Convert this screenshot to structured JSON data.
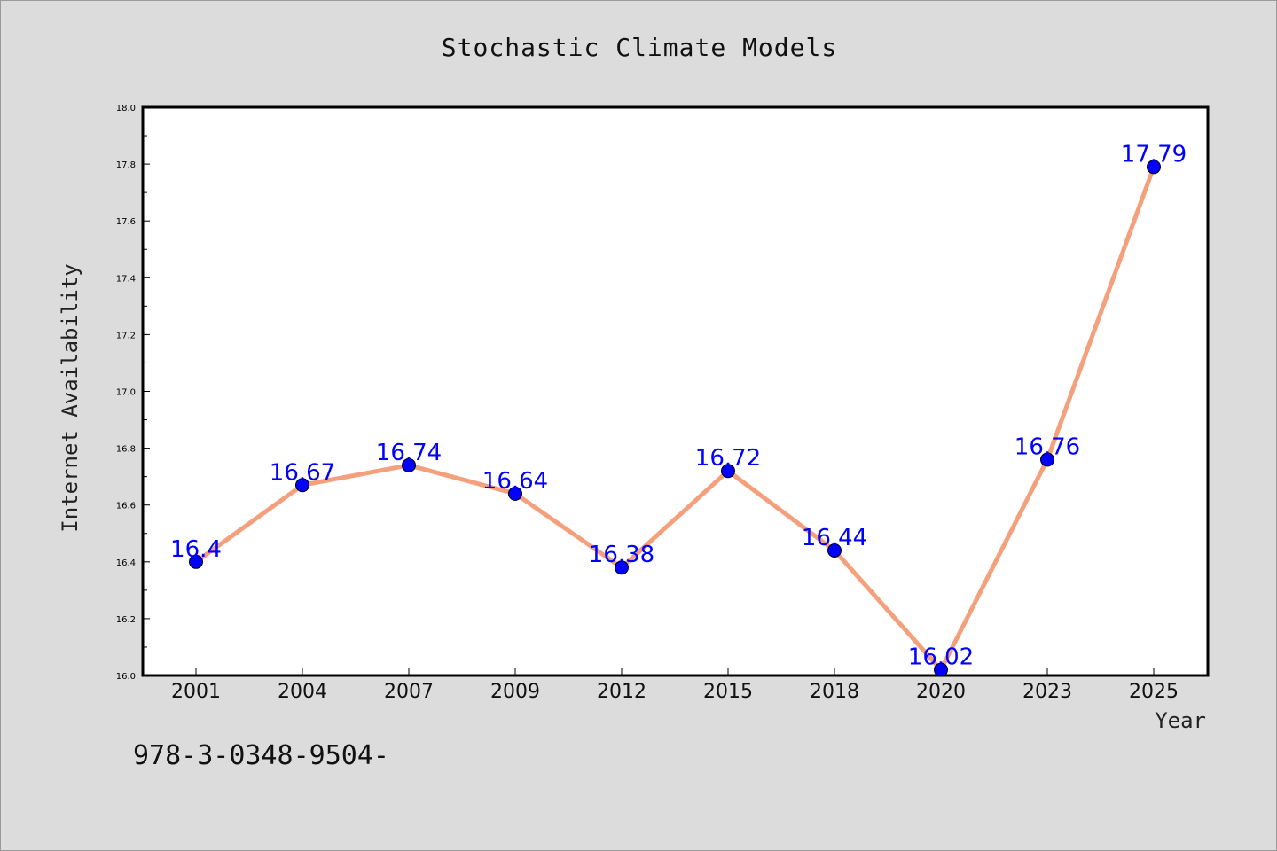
{
  "chart_data": {
    "type": "line",
    "title": "Stochastic Climate Models",
    "xlabel": "Year",
    "ylabel": "Internet Availability",
    "categories": [
      "2001",
      "2004",
      "2007",
      "2009",
      "2012",
      "2015",
      "2018",
      "2020",
      "2023",
      "2025"
    ],
    "values": [
      16.4,
      16.67,
      16.74,
      16.64,
      16.38,
      16.72,
      16.44,
      16.02,
      16.76,
      17.79
    ],
    "data_labels": [
      "16.4",
      "16.67",
      "16.74",
      "16.64",
      "16.38",
      "16.72",
      "16.44",
      "16.02",
      "16.76",
      "17.79"
    ],
    "ylim": [
      16.0,
      18.0
    ],
    "y_ticks": [
      "16.0",
      "16.2",
      "16.4",
      "16.6",
      "16.8",
      "17.0",
      "17.2",
      "17.4",
      "17.6",
      "17.8",
      "18.0"
    ],
    "grid": false,
    "legend": "none",
    "colors": {
      "line": "#f4a07c",
      "marker": "#0000ff",
      "label": "#0000ff",
      "background": "#dcdcdc",
      "plot_background": "#ffffff"
    }
  },
  "footer": {
    "code": "978-3-0348-9504-"
  }
}
